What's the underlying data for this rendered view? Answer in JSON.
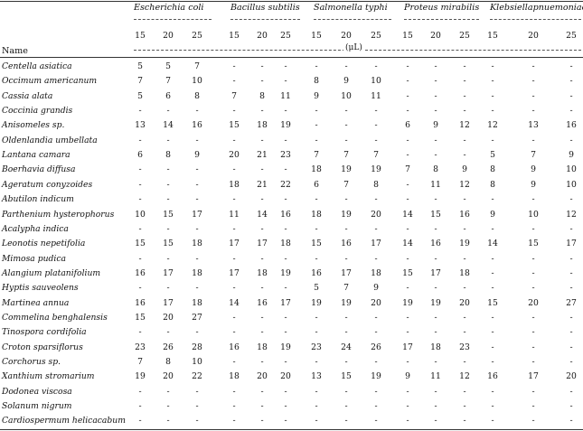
{
  "table": {
    "name_header": "Name",
    "unit": "(μL)",
    "concentrations": [
      "15",
      "20",
      "25"
    ],
    "organisms": [
      "Escherichia coli",
      "Bacillus subtilis",
      "Salmonella typhi",
      "Proteus mirabilis",
      "Klebsiellapnuemoniae"
    ],
    "rows": [
      {
        "name": "Centella asiatica",
        "v": [
          "5",
          "5",
          "7",
          "-",
          "-",
          "-",
          "-",
          "-",
          "-",
          "-",
          "-",
          "-",
          "-",
          "-",
          "-"
        ]
      },
      {
        "name": "Occimum americanum",
        "v": [
          "7",
          "7",
          "10",
          "-",
          "-",
          "-",
          "8",
          "9",
          "10",
          "-",
          "-",
          "-",
          "-",
          "-",
          "-"
        ]
      },
      {
        "name": "Cassia alata",
        "v": [
          "5",
          "6",
          "8",
          "7",
          "8",
          "11",
          "9",
          "10",
          "11",
          "-",
          "-",
          "-",
          "-",
          "-",
          "-"
        ]
      },
      {
        "name": "Coccinia grandis",
        "v": [
          "-",
          "-",
          "-",
          "-",
          "-",
          "-",
          "-",
          "-",
          "-",
          "-",
          "-",
          "-",
          "-",
          "-",
          "-"
        ]
      },
      {
        "name": "Anisomeles sp.",
        "v": [
          "13",
          "14",
          "16",
          "15",
          "18",
          "19",
          "-",
          "-",
          "-",
          "6",
          "9",
          "12",
          "12",
          "13",
          "16"
        ]
      },
      {
        "name": "Oldenlandia umbellata",
        "v": [
          "-",
          "-",
          "-",
          "-",
          "-",
          "-",
          "-",
          "-",
          "-",
          "-",
          "-",
          "-",
          "-",
          "-",
          "-"
        ]
      },
      {
        "name": "Lantana camara",
        "v": [
          "6",
          "8",
          "9",
          "20",
          "21",
          "23",
          "7",
          "7",
          "7",
          "-",
          "-",
          "-",
          "5",
          "7",
          "9"
        ]
      },
      {
        "name": "Boerhavia diffusa",
        "v": [
          "-",
          "-",
          "-",
          "-",
          "-",
          "-",
          "18",
          "19",
          "19",
          "7",
          "8",
          "9",
          "8",
          "9",
          "10"
        ]
      },
      {
        "name": "Ageratum conyzoides",
        "v": [
          "-",
          "-",
          "-",
          "18",
          "21",
          "22",
          "6",
          "7",
          "8",
          "-",
          "11",
          "12",
          "8",
          "9",
          "10"
        ]
      },
      {
        "name": "Abutilon indicum",
        "v": [
          "-",
          "-",
          "-",
          "-",
          "-",
          "-",
          "-",
          "-",
          "-",
          "-",
          "-",
          "-",
          "-",
          "-",
          "-"
        ]
      },
      {
        "name": "Parthenium hysterophorus",
        "v": [
          "10",
          "15",
          "17",
          "11",
          "14",
          "16",
          "18",
          "19",
          "20",
          "14",
          "15",
          "16",
          "9",
          "10",
          "12"
        ]
      },
      {
        "name": "Acalypha indica",
        "v": [
          "-",
          "-",
          "-",
          "-",
          "-",
          "-",
          "-",
          "-",
          "-",
          "-",
          "-",
          "-",
          "-",
          "-",
          "-"
        ]
      },
      {
        "name": "Leonotis nepetifolia",
        "v": [
          "15",
          "15",
          "18",
          "17",
          "17",
          "18",
          "15",
          "16",
          "17",
          "14",
          "16",
          "19",
          "14",
          "15",
          "17"
        ]
      },
      {
        "name": "Mimosa pudica",
        "v": [
          "-",
          "-",
          "-",
          "-",
          "-",
          "-",
          "-",
          "-",
          "-",
          "-",
          "-",
          "-",
          "-",
          "-",
          "-"
        ]
      },
      {
        "name": "Alangium platanifolium",
        "v": [
          "16",
          "17",
          "18",
          "17",
          "18",
          "19",
          "16",
          "17",
          "18",
          "15",
          "17",
          "18",
          "-",
          "-",
          "-"
        ]
      },
      {
        "name": "Hyptis sauveolens",
        "v": [
          "-",
          "-",
          "-",
          "-",
          "-",
          "-",
          "5",
          "7",
          "9",
          "-",
          "-",
          "-",
          "-",
          "-",
          "-"
        ]
      },
      {
        "name": "Martinea annua",
        "v": [
          "16",
          "17",
          "18",
          "14",
          "16",
          "17",
          "19",
          "19",
          "20",
          "19",
          "19",
          "20",
          "15",
          "20",
          "27"
        ]
      },
      {
        "name": "Commelina benghalensis",
        "v": [
          "15",
          "20",
          "27",
          "-",
          "-",
          "-",
          "-",
          "-",
          "-",
          "-",
          "-",
          "-",
          "-",
          "-",
          "-"
        ]
      },
      {
        "name": "Tinospora cordifolia",
        "v": [
          "-",
          "-",
          "-",
          "-",
          "-",
          "-",
          "-",
          "-",
          "-",
          "-",
          "-",
          "-",
          "-",
          "-",
          "-"
        ]
      },
      {
        "name": "Croton sparsiflorus",
        "v": [
          "23",
          "26",
          "28",
          "16",
          "18",
          "19",
          "23",
          "24",
          "26",
          "17",
          "18",
          "23",
          "-",
          "-",
          "-"
        ]
      },
      {
        "name": "Corchorus sp.",
        "v": [
          "7",
          "8",
          "10",
          "-",
          "-",
          "-",
          "-",
          "-",
          "-",
          "-",
          "-",
          "-",
          "-",
          "-",
          "-"
        ]
      },
      {
        "name": "Xanthium stromarium",
        "v": [
          "19",
          "20",
          "22",
          "18",
          "20",
          "20",
          "13",
          "15",
          "19",
          "9",
          "11",
          "12",
          "16",
          "17",
          "20"
        ]
      },
      {
        "name": "Dodonea viscosa",
        "v": [
          "-",
          "-",
          "-",
          "-",
          "-",
          "-",
          "-",
          "-",
          "-",
          "-",
          "-",
          "-",
          "-",
          "-",
          "-"
        ]
      },
      {
        "name": "Solanum nigrum",
        "v": [
          "-",
          "-",
          "-",
          "-",
          "-",
          "-",
          "-",
          "-",
          "-",
          "-",
          "-",
          "-",
          "-",
          "-",
          "-"
        ]
      },
      {
        "name": "Cardiospermum helicacabum",
        "v": [
          "-",
          "-",
          "-",
          "-",
          "-",
          "-",
          "-",
          "-",
          "-",
          "-",
          "-",
          "-",
          "-",
          "-",
          "-"
        ]
      }
    ]
  }
}
